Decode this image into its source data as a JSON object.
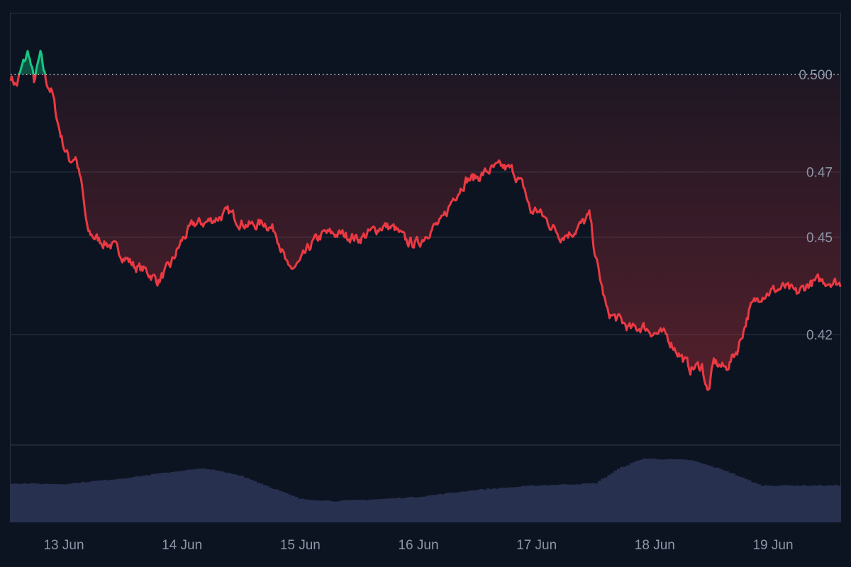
{
  "chart_data": {
    "type": "line",
    "x_unit": "date",
    "x_tick_labels": [
      "13 Jun",
      "14 Jun",
      "15 Jun",
      "16 Jun",
      "17 Jun",
      "18 Jun",
      "19 Jun"
    ],
    "y_ticks": [
      {
        "value": 0.5,
        "label": "0.500"
      },
      {
        "value": 0.47,
        "label": "0.47"
      },
      {
        "value": 0.45,
        "label": "0.45"
      },
      {
        "value": 0.42,
        "label": "0.42"
      }
    ],
    "baseline": 0.5,
    "ylim": [
      0.386,
      0.519
    ],
    "xlim": [
      12.55,
      19.57
    ],
    "grid": true,
    "colors": {
      "above_baseline": "#16c784",
      "below_baseline": "#ea3943",
      "volume": "#27304f",
      "grid": "#2a3242",
      "baseline_dots": "#c9ced8"
    },
    "series": [
      {
        "values": [
          [
            12.55,
            0.4995
          ],
          [
            12.6,
            0.4965
          ],
          [
            12.65,
            0.5025
          ],
          [
            12.7,
            0.507
          ],
          [
            12.75,
            0.4975
          ],
          [
            12.8,
            0.506
          ],
          [
            12.85,
            0.498
          ],
          [
            12.9,
            0.4945
          ],
          [
            12.95,
            0.485
          ],
          [
            13.0,
            0.478
          ],
          [
            13.05,
            0.4735
          ],
          [
            13.1,
            0.475
          ],
          [
            13.15,
            0.466
          ],
          [
            13.2,
            0.4515
          ],
          [
            13.3,
            0.449
          ],
          [
            13.4,
            0.4475
          ],
          [
            13.5,
            0.4445
          ],
          [
            13.6,
            0.441
          ],
          [
            13.7,
            0.4395
          ],
          [
            13.8,
            0.4365
          ],
          [
            13.9,
            0.441
          ],
          [
            14.0,
            0.449
          ],
          [
            14.1,
            0.454
          ],
          [
            14.2,
            0.4545
          ],
          [
            14.3,
            0.456
          ],
          [
            14.4,
            0.4575
          ],
          [
            14.5,
            0.4545
          ],
          [
            14.6,
            0.4535
          ],
          [
            14.7,
            0.4545
          ],
          [
            14.8,
            0.4515
          ],
          [
            14.9,
            0.4395
          ],
          [
            15.0,
            0.442
          ],
          [
            15.1,
            0.448
          ],
          [
            15.2,
            0.451
          ],
          [
            15.3,
            0.451
          ],
          [
            15.4,
            0.4505
          ],
          [
            15.5,
            0.4495
          ],
          [
            15.6,
            0.4515
          ],
          [
            15.7,
            0.4535
          ],
          [
            15.8,
            0.4525
          ],
          [
            15.9,
            0.4485
          ],
          [
            16.0,
            0.448
          ],
          [
            16.1,
            0.4525
          ],
          [
            16.2,
            0.4545
          ],
          [
            16.3,
            0.4625
          ],
          [
            16.4,
            0.4675
          ],
          [
            16.5,
            0.4685
          ],
          [
            16.6,
            0.4705
          ],
          [
            16.7,
            0.4715
          ],
          [
            16.8,
            0.4705
          ],
          [
            16.9,
            0.4645
          ],
          [
            16.95,
            0.4575
          ],
          [
            17.0,
            0.4585
          ],
          [
            17.1,
            0.4545
          ],
          [
            17.2,
            0.4505
          ],
          [
            17.3,
            0.4515
          ],
          [
            17.4,
            0.4545
          ],
          [
            17.45,
            0.4565
          ],
          [
            17.5,
            0.4435
          ],
          [
            17.6,
            0.4265
          ],
          [
            17.7,
            0.4245
          ],
          [
            17.8,
            0.4215
          ],
          [
            17.9,
            0.4225
          ],
          [
            18.0,
            0.4205
          ],
          [
            18.1,
            0.4195
          ],
          [
            18.2,
            0.4145
          ],
          [
            18.3,
            0.4095
          ],
          [
            18.4,
            0.4105
          ],
          [
            18.45,
            0.4015
          ],
          [
            18.5,
            0.4115
          ],
          [
            18.6,
            0.4095
          ],
          [
            18.7,
            0.4155
          ],
          [
            18.8,
            0.4275
          ],
          [
            18.9,
            0.4325
          ],
          [
            19.0,
            0.4335
          ],
          [
            19.1,
            0.4345
          ],
          [
            19.2,
            0.4325
          ],
          [
            19.3,
            0.4355
          ],
          [
            19.4,
            0.4365
          ],
          [
            19.5,
            0.4365
          ],
          [
            19.57,
            0.4355
          ]
        ]
      }
    ],
    "volume_relative": [
      [
        12.55,
        0.55
      ],
      [
        13.0,
        0.54
      ],
      [
        13.5,
        0.62
      ],
      [
        14.0,
        0.73
      ],
      [
        14.2,
        0.76
      ],
      [
        14.5,
        0.66
      ],
      [
        15.0,
        0.33
      ],
      [
        15.3,
        0.3
      ],
      [
        15.7,
        0.33
      ],
      [
        16.0,
        0.36
      ],
      [
        16.5,
        0.46
      ],
      [
        17.0,
        0.52
      ],
      [
        17.5,
        0.55
      ],
      [
        17.7,
        0.76
      ],
      [
        17.9,
        0.9
      ],
      [
        18.3,
        0.88
      ],
      [
        18.6,
        0.73
      ],
      [
        18.9,
        0.52
      ],
      [
        19.57,
        0.52
      ]
    ]
  }
}
